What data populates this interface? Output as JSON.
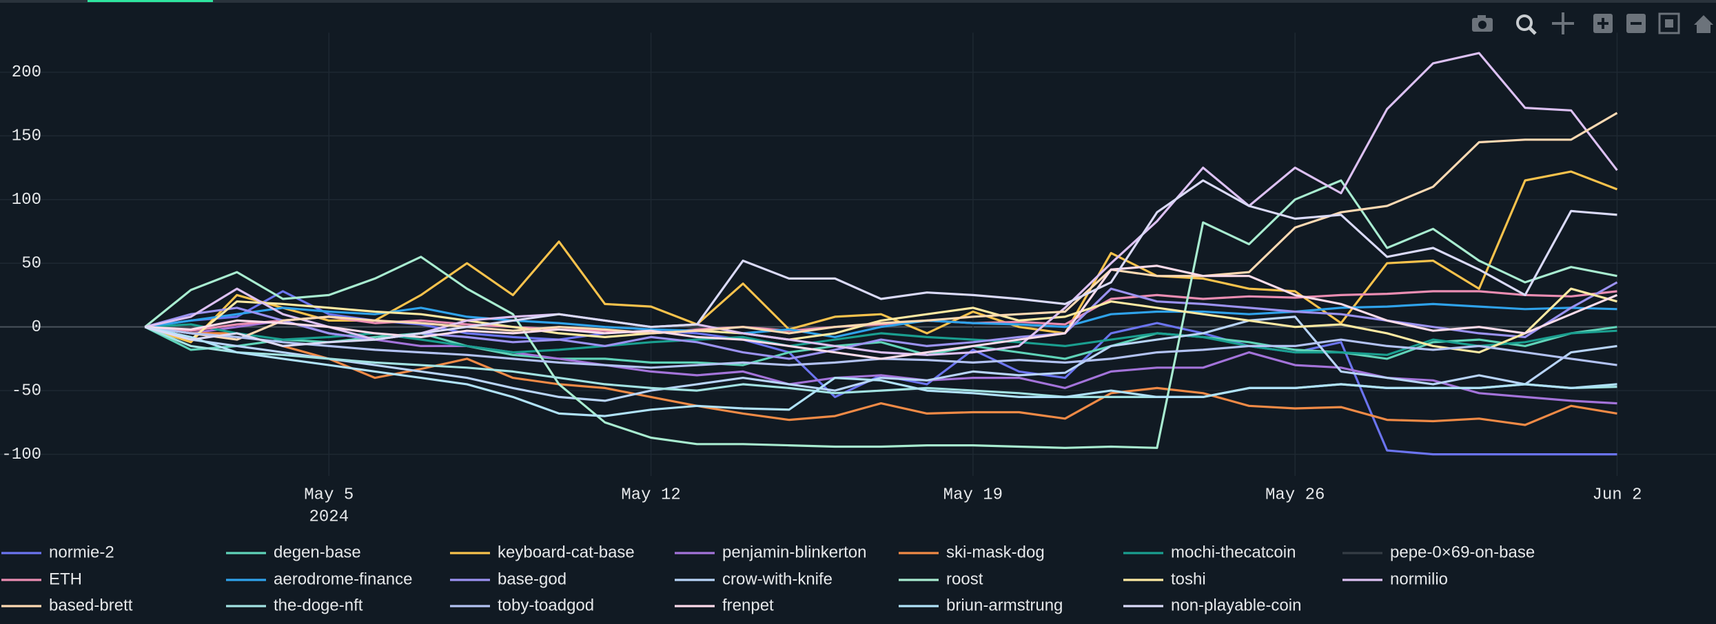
{
  "chart_data": {
    "type": "line",
    "x": [
      "2024-05-01",
      "2024-05-02",
      "2024-05-03",
      "2024-05-04",
      "2024-05-05",
      "2024-05-06",
      "2024-05-07",
      "2024-05-08",
      "2024-05-09",
      "2024-05-10",
      "2024-05-11",
      "2024-05-12",
      "2024-05-13",
      "2024-05-14",
      "2024-05-15",
      "2024-05-16",
      "2024-05-17",
      "2024-05-18",
      "2024-05-19",
      "2024-05-20",
      "2024-05-21",
      "2024-05-22",
      "2024-05-23",
      "2024-05-24",
      "2024-05-25",
      "2024-05-26",
      "2024-05-27",
      "2024-05-28",
      "2024-05-29",
      "2024-05-30",
      "2024-05-31",
      "2024-06-01",
      "2024-06-02"
    ],
    "xlim": [
      "2024-04-28",
      "2024-06-04"
    ],
    "xticks": [
      {
        "value": "2024-05-05",
        "label": "May 5"
      },
      {
        "value": "2024-05-12",
        "label": "May 12"
      },
      {
        "value": "2024-05-19",
        "label": "May 19"
      },
      {
        "value": "2024-05-26",
        "label": "May 26"
      },
      {
        "value": "2024-06-02",
        "label": "Jun 2"
      }
    ],
    "x_year_label": "2024",
    "ylim": [
      -117,
      231
    ],
    "yticks": [
      -100,
      -50,
      0,
      50,
      100,
      150,
      200
    ],
    "grid": true,
    "legend": "bottom",
    "series": [
      {
        "name": "normie-2",
        "color": "#6b74ef",
        "values": [
          0,
          5,
          8,
          28,
          10,
          5,
          2,
          -5,
          -8,
          -10,
          -5,
          -3,
          -5,
          -10,
          -20,
          -55,
          -38,
          -45,
          -18,
          -35,
          -40,
          -5,
          3,
          -5,
          -15,
          -20,
          -12,
          -97,
          -100,
          -100,
          -100,
          -100,
          -100
        ]
      },
      {
        "name": "degen-base",
        "color": "#5fd3b8",
        "values": [
          0,
          -18,
          -15,
          -10,
          -12,
          -8,
          -5,
          -15,
          -22,
          -25,
          -25,
          -28,
          -28,
          -30,
          -20,
          -15,
          -12,
          -22,
          -15,
          -20,
          -25,
          -15,
          -5,
          -8,
          -12,
          -18,
          -20,
          -25,
          -12,
          -10,
          -15,
          -5,
          0
        ]
      },
      {
        "name": "keyboard-cat-base",
        "color": "#f8c24c",
        "values": [
          0,
          -12,
          25,
          15,
          5,
          5,
          25,
          50,
          25,
          67,
          18,
          16,
          2,
          34,
          -2,
          8,
          10,
          -5,
          12,
          0,
          -5,
          58,
          40,
          38,
          30,
          28,
          3,
          50,
          52,
          30,
          115,
          122,
          108
        ]
      },
      {
        "name": "penjamin-blinkerton",
        "color": "#a373d9",
        "values": [
          0,
          -5,
          0,
          5,
          -5,
          -10,
          -15,
          -15,
          -20,
          -25,
          -30,
          -35,
          -38,
          -35,
          -45,
          -40,
          -38,
          -42,
          -40,
          -40,
          -48,
          -35,
          -32,
          -32,
          -20,
          -30,
          -32,
          -40,
          -42,
          -52,
          -55,
          -58,
          -60
        ]
      },
      {
        "name": "ski-mask-dog",
        "color": "#f08a46",
        "values": [
          0,
          -5,
          -5,
          -15,
          -25,
          -40,
          -33,
          -25,
          -40,
          -45,
          -48,
          -55,
          -62,
          -68,
          -73,
          -70,
          -60,
          -68,
          -67,
          -67,
          -72,
          -52,
          -48,
          -52,
          -62,
          -64,
          -63,
          -73,
          -74,
          -72,
          -77,
          -62,
          -68
        ]
      },
      {
        "name": "mochi-thecatcoin",
        "color": "#1a9e8f",
        "values": [
          0,
          2,
          -5,
          -10,
          -8,
          -5,
          -10,
          -15,
          -20,
          -18,
          -15,
          -12,
          -10,
          -8,
          -15,
          -10,
          -5,
          -8,
          -10,
          -12,
          -15,
          -10,
          -5,
          -8,
          -15,
          -20,
          -20,
          -22,
          -10,
          -15,
          -12,
          -5,
          -3
        ]
      },
      {
        "name": "pepe-0×69-on-base",
        "color": "#5a6068",
        "visible": false
      },
      {
        "name": "ETH",
        "color": "#ea8db2",
        "values": [
          0,
          -3,
          2,
          5,
          8,
          3,
          5,
          2,
          0,
          -2,
          -3,
          -5,
          -2,
          0,
          -3,
          0,
          2,
          5,
          3,
          4,
          2,
          22,
          25,
          22,
          24,
          23,
          25,
          26,
          28,
          28,
          25,
          24,
          28
        ]
      },
      {
        "name": "aerodrome-finance",
        "color": "#2fa2ea",
        "values": [
          0,
          5,
          10,
          15,
          12,
          10,
          15,
          8,
          5,
          3,
          0,
          -2,
          -3,
          -5,
          -2,
          -8,
          0,
          5,
          3,
          2,
          0,
          10,
          12,
          12,
          10,
          12,
          15,
          16,
          18,
          16,
          14,
          15,
          14
        ]
      },
      {
        "name": "base-god",
        "color": "#9b92f1",
        "values": [
          0,
          10,
          15,
          5,
          -5,
          -10,
          -5,
          -8,
          -12,
          -10,
          -15,
          -8,
          -12,
          -20,
          -25,
          -18,
          -10,
          -15,
          -12,
          -8,
          -5,
          30,
          20,
          18,
          15,
          12,
          10,
          5,
          0,
          -5,
          -8,
          15,
          35
        ]
      },
      {
        "name": "crow-with-knife",
        "color": "#b8d4f8",
        "values": [
          0,
          -10,
          -15,
          -20,
          -25,
          -30,
          -35,
          -40,
          -48,
          -55,
          -58,
          -50,
          -45,
          -40,
          -45,
          -50,
          -40,
          -42,
          -35,
          -38,
          -36,
          -15,
          -10,
          -5,
          5,
          8,
          -35,
          -40,
          -45,
          -38,
          -45,
          -20,
          -15
        ]
      },
      {
        "name": "roost",
        "color": "#a8ecd0",
        "values": [
          0,
          29,
          43,
          22,
          25,
          38,
          55,
          30,
          10,
          -45,
          -75,
          -87,
          -92,
          -92,
          -93,
          -94,
          -94,
          -93,
          -93,
          -94,
          -95,
          -94,
          -95,
          82,
          65,
          100,
          115,
          62,
          77,
          52,
          35,
          47,
          40
        ]
      },
      {
        "name": "toshi",
        "color": "#fde9a2",
        "values": [
          0,
          -10,
          20,
          18,
          15,
          12,
          10,
          5,
          0,
          -5,
          -8,
          -5,
          -3,
          -5,
          -10,
          -5,
          5,
          10,
          15,
          5,
          8,
          20,
          15,
          10,
          5,
          0,
          2,
          -5,
          -15,
          -20,
          -5,
          30,
          20
        ]
      },
      {
        "name": "normilio",
        "color": "#dcc0f2",
        "values": [
          0,
          8,
          30,
          10,
          0,
          -10,
          -5,
          5,
          8,
          10,
          5,
          0,
          2,
          -5,
          -10,
          -15,
          -20,
          -22,
          -20,
          -15,
          15,
          50,
          83,
          125,
          95,
          125,
          105,
          171,
          207,
          215,
          172,
          170,
          123
        ]
      },
      {
        "name": "based-brett",
        "color": "#fdd9b2",
        "values": [
          0,
          -5,
          -10,
          5,
          8,
          5,
          3,
          0,
          -3,
          0,
          -2,
          -5,
          -3,
          0,
          -5,
          0,
          3,
          5,
          8,
          10,
          12,
          45,
          40,
          40,
          43,
          78,
          90,
          95,
          110,
          145,
          147,
          147,
          168
        ]
      },
      {
        "name": "the-doge-nft",
        "color": "#a2e2e2",
        "values": [
          0,
          -15,
          -20,
          -22,
          -25,
          -28,
          -30,
          -32,
          -35,
          -40,
          -45,
          -48,
          -50,
          -45,
          -48,
          -52,
          -50,
          -48,
          -50,
          -52,
          -55,
          -55,
          -55,
          -55,
          -48,
          -48,
          -45,
          -48,
          -48,
          -48,
          -45,
          -48,
          -47
        ]
      },
      {
        "name": "toby-toadgod",
        "color": "#b2c2f2",
        "values": [
          0,
          -5,
          -8,
          -12,
          -15,
          -18,
          -20,
          -22,
          -25,
          -28,
          -30,
          -32,
          -30,
          -28,
          -30,
          -28,
          -25,
          -26,
          -28,
          -26,
          -28,
          -25,
          -20,
          -18,
          -15,
          -15,
          -10,
          -15,
          -18,
          -15,
          -20,
          -25,
          -30
        ]
      },
      {
        "name": "frenpet",
        "color": "#fcdbea",
        "values": [
          0,
          -2,
          5,
          3,
          0,
          -5,
          -8,
          -3,
          -5,
          -2,
          -5,
          -3,
          -8,
          -10,
          -15,
          -20,
          -25,
          -20,
          -15,
          -10,
          -5,
          45,
          48,
          40,
          40,
          25,
          18,
          5,
          -3,
          0,
          -5,
          10,
          25
        ]
      },
      {
        "name": "briun-armstrung",
        "color": "#b0e2f8",
        "values": [
          0,
          -8,
          -20,
          -25,
          -30,
          -35,
          -40,
          -45,
          -55,
          -68,
          -70,
          -65,
          -62,
          -64,
          -65,
          -40,
          -42,
          -50,
          -52,
          -55,
          -55,
          -50,
          -55,
          -55,
          -48,
          -48,
          -45,
          -48,
          -48,
          -48,
          -45,
          -48,
          -45
        ]
      },
      {
        "name": "non-playable-coin",
        "color": "#dadaf8",
        "values": [
          0,
          -10,
          -5,
          -15,
          -12,
          -10,
          -5,
          0,
          5,
          10,
          5,
          0,
          2,
          52,
          38,
          38,
          22,
          27,
          25,
          22,
          18,
          35,
          90,
          115,
          95,
          85,
          88,
          55,
          62,
          45,
          25,
          91,
          88
        ]
      }
    ]
  }
}
